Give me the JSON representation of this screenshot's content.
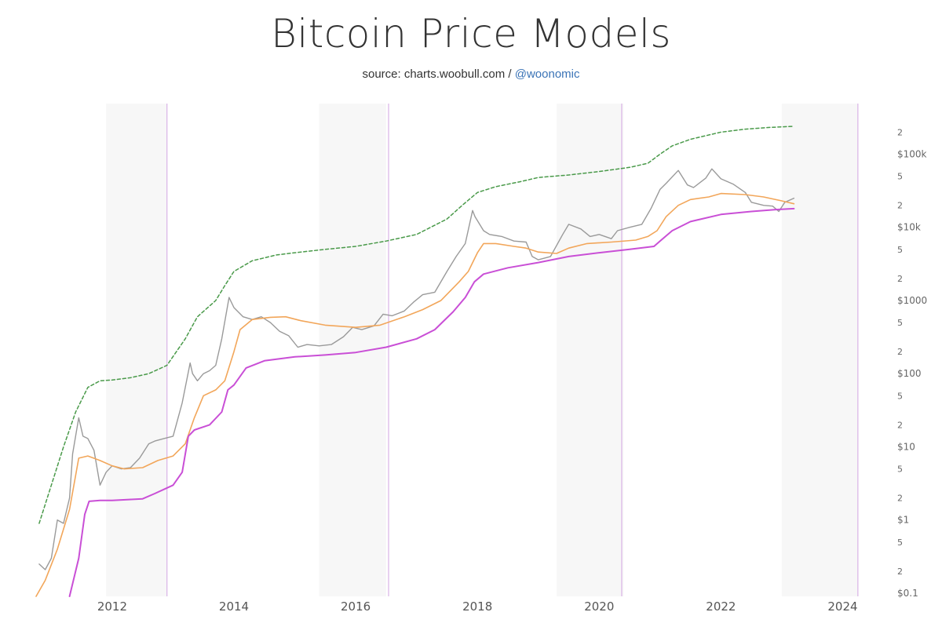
{
  "header": {
    "title": "Bitcoin Price Models",
    "source_prefix": "source: charts.woobull.com / ",
    "source_handle": "@woonomic"
  },
  "colors": {
    "price": "#9a9a9a",
    "orange_model": "#f2a65a",
    "magenta_model": "#c94fd6",
    "green_model": "#4a9a4a",
    "halving_line": "#d9b3e6",
    "band": "#f7f7f7"
  },
  "chart_data": {
    "type": "line",
    "title": "Bitcoin Price Models",
    "y_scale": "log",
    "ylim": [
      0.1,
      300000
    ],
    "xlim": [
      2010.75,
      2024.6
    ],
    "y_major_ticks": [
      {
        "value": 0.1,
        "label": "$0.1"
      },
      {
        "value": 1,
        "label": "$1"
      },
      {
        "value": 10,
        "label": "$10"
      },
      {
        "value": 100,
        "label": "$100"
      },
      {
        "value": 1000,
        "label": "$1000"
      },
      {
        "value": 10000,
        "label": "$10k"
      },
      {
        "value": 100000,
        "label": "$100k"
      }
    ],
    "y_minor_ticks": [
      {
        "value": 0.2,
        "label": "2"
      },
      {
        "value": 0.5,
        "label": "5"
      },
      {
        "value": 2,
        "label": "2"
      },
      {
        "value": 5,
        "label": "5"
      },
      {
        "value": 20,
        "label": "2"
      },
      {
        "value": 50,
        "label": "5"
      },
      {
        "value": 200,
        "label": "2"
      },
      {
        "value": 500,
        "label": "5"
      },
      {
        "value": 2000,
        "label": "2"
      },
      {
        "value": 5000,
        "label": "5"
      },
      {
        "value": 20000,
        "label": "2"
      },
      {
        "value": 50000,
        "label": "5"
      },
      {
        "value": 200000,
        "label": "2"
      }
    ],
    "x_ticks": [
      {
        "value": 2012,
        "label": "2012"
      },
      {
        "value": 2014,
        "label": "2014"
      },
      {
        "value": 2016,
        "label": "2016"
      },
      {
        "value": 2018,
        "label": "2018"
      },
      {
        "value": 2020,
        "label": "2020"
      },
      {
        "value": 2022,
        "label": "2022"
      },
      {
        "value": 2024,
        "label": "2024"
      }
    ],
    "shaded_bands": [
      [
        2011.9,
        2012.9
      ],
      [
        2015.4,
        2016.5
      ],
      [
        2019.3,
        2020.4
      ],
      [
        2023.0,
        2024.25
      ]
    ],
    "halving_lines": [
      2012.9,
      2016.54,
      2020.37,
      2024.25
    ],
    "series": [
      {
        "name": "price",
        "style": "solid",
        "x": [
          2010.8,
          2010.9,
          2011.0,
          2011.1,
          2011.2,
          2011.3,
          2011.35,
          2011.45,
          2011.52,
          2011.6,
          2011.7,
          2011.8,
          2011.9,
          2012.0,
          2012.15,
          2012.3,
          2012.45,
          2012.6,
          2012.7,
          2012.85,
          2013.0,
          2013.15,
          2013.28,
          2013.32,
          2013.4,
          2013.5,
          2013.6,
          2013.7,
          2013.8,
          2013.92,
          2014.0,
          2014.15,
          2014.3,
          2014.45,
          2014.6,
          2014.75,
          2014.9,
          2015.05,
          2015.2,
          2015.4,
          2015.6,
          2015.8,
          2015.95,
          2016.1,
          2016.3,
          2016.45,
          2016.6,
          2016.8,
          2016.95,
          2017.1,
          2017.3,
          2017.5,
          2017.65,
          2017.8,
          2017.92,
          2017.96,
          2018.1,
          2018.2,
          2018.4,
          2018.6,
          2018.8,
          2018.9,
          2019.0,
          2019.2,
          2019.4,
          2019.5,
          2019.7,
          2019.85,
          2020.0,
          2020.2,
          2020.3,
          2020.5,
          2020.7,
          2020.85,
          2021.0,
          2021.1,
          2021.3,
          2021.45,
          2021.55,
          2021.75,
          2021.85,
          2022.0,
          2022.2,
          2022.4,
          2022.5,
          2022.7,
          2022.85,
          2022.95,
          2023.05,
          2023.2
        ],
        "values": [
          0.25,
          0.21,
          0.3,
          1.0,
          0.9,
          2.0,
          8.0,
          25.0,
          14.0,
          13.0,
          9.0,
          3.0,
          4.5,
          5.5,
          5.0,
          5.2,
          7.0,
          11.0,
          12.0,
          13.0,
          14.0,
          40.0,
          140.0,
          100.0,
          80.0,
          100.0,
          110.0,
          130.0,
          300.0,
          1100.0,
          800.0,
          600.0,
          550.0,
          600.0,
          500.0,
          380.0,
          330.0,
          230.0,
          250.0,
          240.0,
          250.0,
          320.0,
          430.0,
          400.0,
          450.0,
          650.0,
          620.0,
          720.0,
          950.0,
          1200.0,
          1300.0,
          2500.0,
          4000.0,
          6000.0,
          17000.0,
          14000.0,
          9000.0,
          8000.0,
          7500.0,
          6500.0,
          6300.0,
          4000.0,
          3600.0,
          4000.0,
          8000.0,
          11000.0,
          9500.0,
          7500.0,
          8000.0,
          7000.0,
          9000.0,
          10000.0,
          11000.0,
          18000.0,
          33000.0,
          40000.0,
          60000.0,
          38000.0,
          35000.0,
          47000.0,
          63000.0,
          46000.0,
          39000.0,
          30000.0,
          22000.0,
          20000.0,
          19500.0,
          16500.0,
          22000.0,
          25000.0
        ]
      },
      {
        "name": "orange_model",
        "style": "solid",
        "x": [
          2010.75,
          2010.9,
          2011.1,
          2011.3,
          2011.45,
          2011.6,
          2011.8,
          2012.0,
          2012.2,
          2012.5,
          2012.75,
          2013.0,
          2013.2,
          2013.35,
          2013.5,
          2013.7,
          2013.85,
          2014.0,
          2014.1,
          2014.3,
          2014.6,
          2014.85,
          2015.1,
          2015.5,
          2016.0,
          2016.4,
          2016.8,
          2017.1,
          2017.4,
          2017.7,
          2017.85,
          2018.0,
          2018.1,
          2018.3,
          2018.6,
          2018.8,
          2019.0,
          2019.3,
          2019.5,
          2019.8,
          2020.2,
          2020.6,
          2020.8,
          2020.95,
          2021.1,
          2021.3,
          2021.5,
          2021.8,
          2022.0,
          2022.4,
          2022.7,
          2023.0,
          2023.2
        ],
        "values": [
          0.09,
          0.15,
          0.4,
          1.4,
          7.0,
          7.5,
          6.5,
          5.5,
          5.0,
          5.2,
          6.5,
          7.5,
          11.0,
          25.0,
          50.0,
          60.0,
          80.0,
          200.0,
          400.0,
          550.0,
          590.0,
          600.0,
          530.0,
          460.0,
          430.0,
          460.0,
          600.0,
          750.0,
          1000.0,
          1800.0,
          2500.0,
          4500.0,
          6000.0,
          6000.0,
          5500.0,
          5200.0,
          4600.0,
          4400.0,
          5200.0,
          6000.0,
          6300.0,
          6700.0,
          7500.0,
          9000.0,
          14000.0,
          20000.0,
          24000.0,
          26000.0,
          29000.0,
          28000.0,
          26000.0,
          23000.0,
          21000.0
        ]
      },
      {
        "name": "magenta_model",
        "style": "solid",
        "x": [
          2011.3,
          2011.45,
          2011.55,
          2011.62,
          2011.8,
          2012.0,
          2012.5,
          2012.7,
          2013.0,
          2013.15,
          2013.25,
          2013.35,
          2013.6,
          2013.8,
          2013.9,
          2014.0,
          2014.2,
          2014.5,
          2015.0,
          2015.5,
          2016.0,
          2016.5,
          2017.0,
          2017.3,
          2017.6,
          2017.8,
          2017.95,
          2018.1,
          2018.5,
          2019.0,
          2019.5,
          2020.0,
          2020.5,
          2020.9,
          2021.0,
          2021.2,
          2021.5,
          2022.0,
          2022.5,
          2022.9,
          2023.2
        ],
        "values": [
          0.06,
          0.3,
          1.2,
          1.8,
          1.85,
          1.85,
          1.95,
          2.3,
          3.0,
          4.5,
          14.0,
          17.0,
          20.0,
          30.0,
          60.0,
          70.0,
          120.0,
          150.0,
          170.0,
          180.0,
          195.0,
          230.0,
          300.0,
          400.0,
          700.0,
          1100.0,
          1800.0,
          2300.0,
          2800.0,
          3300.0,
          4000.0,
          4500.0,
          5000.0,
          5500.0,
          6500.0,
          9000.0,
          12000.0,
          15000.0,
          16500.0,
          17500.0,
          18000.0
        ]
      },
      {
        "name": "green_model",
        "style": "dashed",
        "x": [
          2010.8,
          2011.0,
          2011.2,
          2011.4,
          2011.6,
          2011.8,
          2012.0,
          2012.3,
          2012.6,
          2012.9,
          2013.2,
          2013.4,
          2013.7,
          2013.85,
          2014.0,
          2014.3,
          2014.7,
          2015.0,
          2015.5,
          2016.0,
          2016.5,
          2017.0,
          2017.5,
          2017.75,
          2018.0,
          2018.3,
          2018.7,
          2019.0,
          2019.5,
          2020.0,
          2020.5,
          2020.8,
          2021.0,
          2021.2,
          2021.5,
          2022.0,
          2022.4,
          2022.8,
          2023.2
        ],
        "values": [
          0.9,
          3.0,
          10.0,
          30.0,
          65.0,
          80.0,
          82.0,
          88.0,
          100.0,
          130.0,
          300.0,
          600.0,
          1000.0,
          1600.0,
          2500.0,
          3500.0,
          4200.0,
          4500.0,
          5000.0,
          5500.0,
          6500.0,
          8000.0,
          13000.0,
          20000.0,
          30000.0,
          36000.0,
          42000.0,
          48000.0,
          52000.0,
          58000.0,
          66000.0,
          75000.0,
          100000.0,
          130000.0,
          160000.0,
          200000.0,
          220000.0,
          232000.0,
          240000.0
        ]
      }
    ]
  }
}
